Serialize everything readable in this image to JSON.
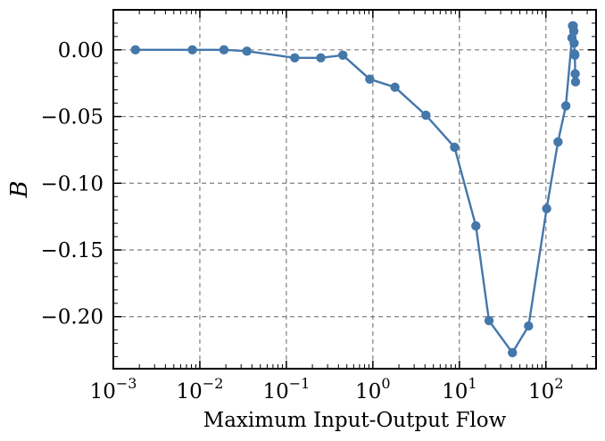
{
  "chart_data": {
    "type": "line",
    "xlabel": "Maximum Input-Output Flow",
    "ylabel": "B",
    "xscale": "log",
    "xlim": [
      0.001,
      380
    ],
    "ylim": [
      -0.239,
      0.03
    ],
    "grid": true,
    "legend": "none",
    "x_ticks": [
      {
        "value": 0.001,
        "base": "10",
        "exp": "−3"
      },
      {
        "value": 0.01,
        "base": "10",
        "exp": "−2"
      },
      {
        "value": 0.1,
        "base": "10",
        "exp": "−1"
      },
      {
        "value": 1,
        "base": "10",
        "exp": "0"
      },
      {
        "value": 10,
        "base": "10",
        "exp": "1"
      },
      {
        "value": 100,
        "base": "10",
        "exp": "2"
      }
    ],
    "y_ticks": [
      {
        "value": 0.0,
        "label": "0.00"
      },
      {
        "value": -0.05,
        "label": "−0.05"
      },
      {
        "value": -0.1,
        "label": "−0.10"
      },
      {
        "value": -0.15,
        "label": "−0.15"
      },
      {
        "value": -0.2,
        "label": "−0.20"
      }
    ],
    "series": [
      {
        "color": "#4477aa",
        "x": [
          0.0018,
          0.0082,
          0.019,
          0.035,
          0.125,
          0.25,
          0.45,
          0.92,
          1.8,
          4.1,
          8.8,
          15.5,
          22,
          41,
          63,
          102,
          138,
          170,
          200,
          203,
          207,
          210,
          212,
          214,
          216,
          218,
          220
        ],
        "y": [
          0.0,
          0.0,
          0.0,
          -0.001,
          -0.006,
          -0.006,
          -0.004,
          -0.022,
          -0.028,
          -0.049,
          -0.073,
          -0.132,
          -0.203,
          -0.227,
          -0.207,
          -0.119,
          -0.069,
          -0.042,
          0.009,
          0.018,
          0.018,
          0.014,
          0.005,
          -0.003,
          -0.004,
          -0.018,
          -0.024
        ]
      }
    ]
  }
}
